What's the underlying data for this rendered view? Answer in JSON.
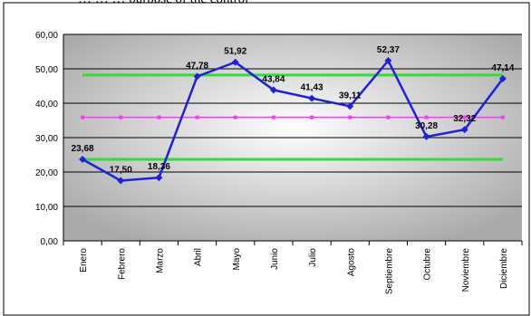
{
  "page": {
    "top_text": "… … … purpose of the control"
  },
  "chart_data": {
    "type": "line",
    "title": "",
    "xlabel": "",
    "ylabel": "",
    "ylim": [
      0,
      60
    ],
    "yticks": [
      "0,00",
      "10,00",
      "20,00",
      "30,00",
      "40,00",
      "50,00",
      "60,00"
    ],
    "grid": true,
    "categories": [
      "Enero",
      "Febrero",
      "Marzo",
      "Abril",
      "Mayo",
      "Junio",
      "Julio",
      "Agosto",
      "Septiembre",
      "Octubre",
      "Noviembre",
      "Diciembre"
    ],
    "series": [
      {
        "values": [
          23.68,
          17.5,
          18.36,
          47.78,
          51.92,
          43.84,
          41.43,
          39.11,
          52.37,
          30.28,
          32.32,
          47.14
        ],
        "labels": [
          "23,68",
          "17,50",
          "18,36",
          "47,78",
          "51,92",
          "43,84",
          "41,43",
          "39,11",
          "52,37",
          "30,28",
          "32,32",
          "47,14"
        ],
        "color": "#1f1fe0"
      }
    ],
    "reference_lines": [
      {
        "value": 48.2,
        "color": "#33dd33"
      },
      {
        "value": 35.9,
        "color": "#ff33ff"
      },
      {
        "value": 23.7,
        "color": "#33dd33"
      }
    ]
  }
}
